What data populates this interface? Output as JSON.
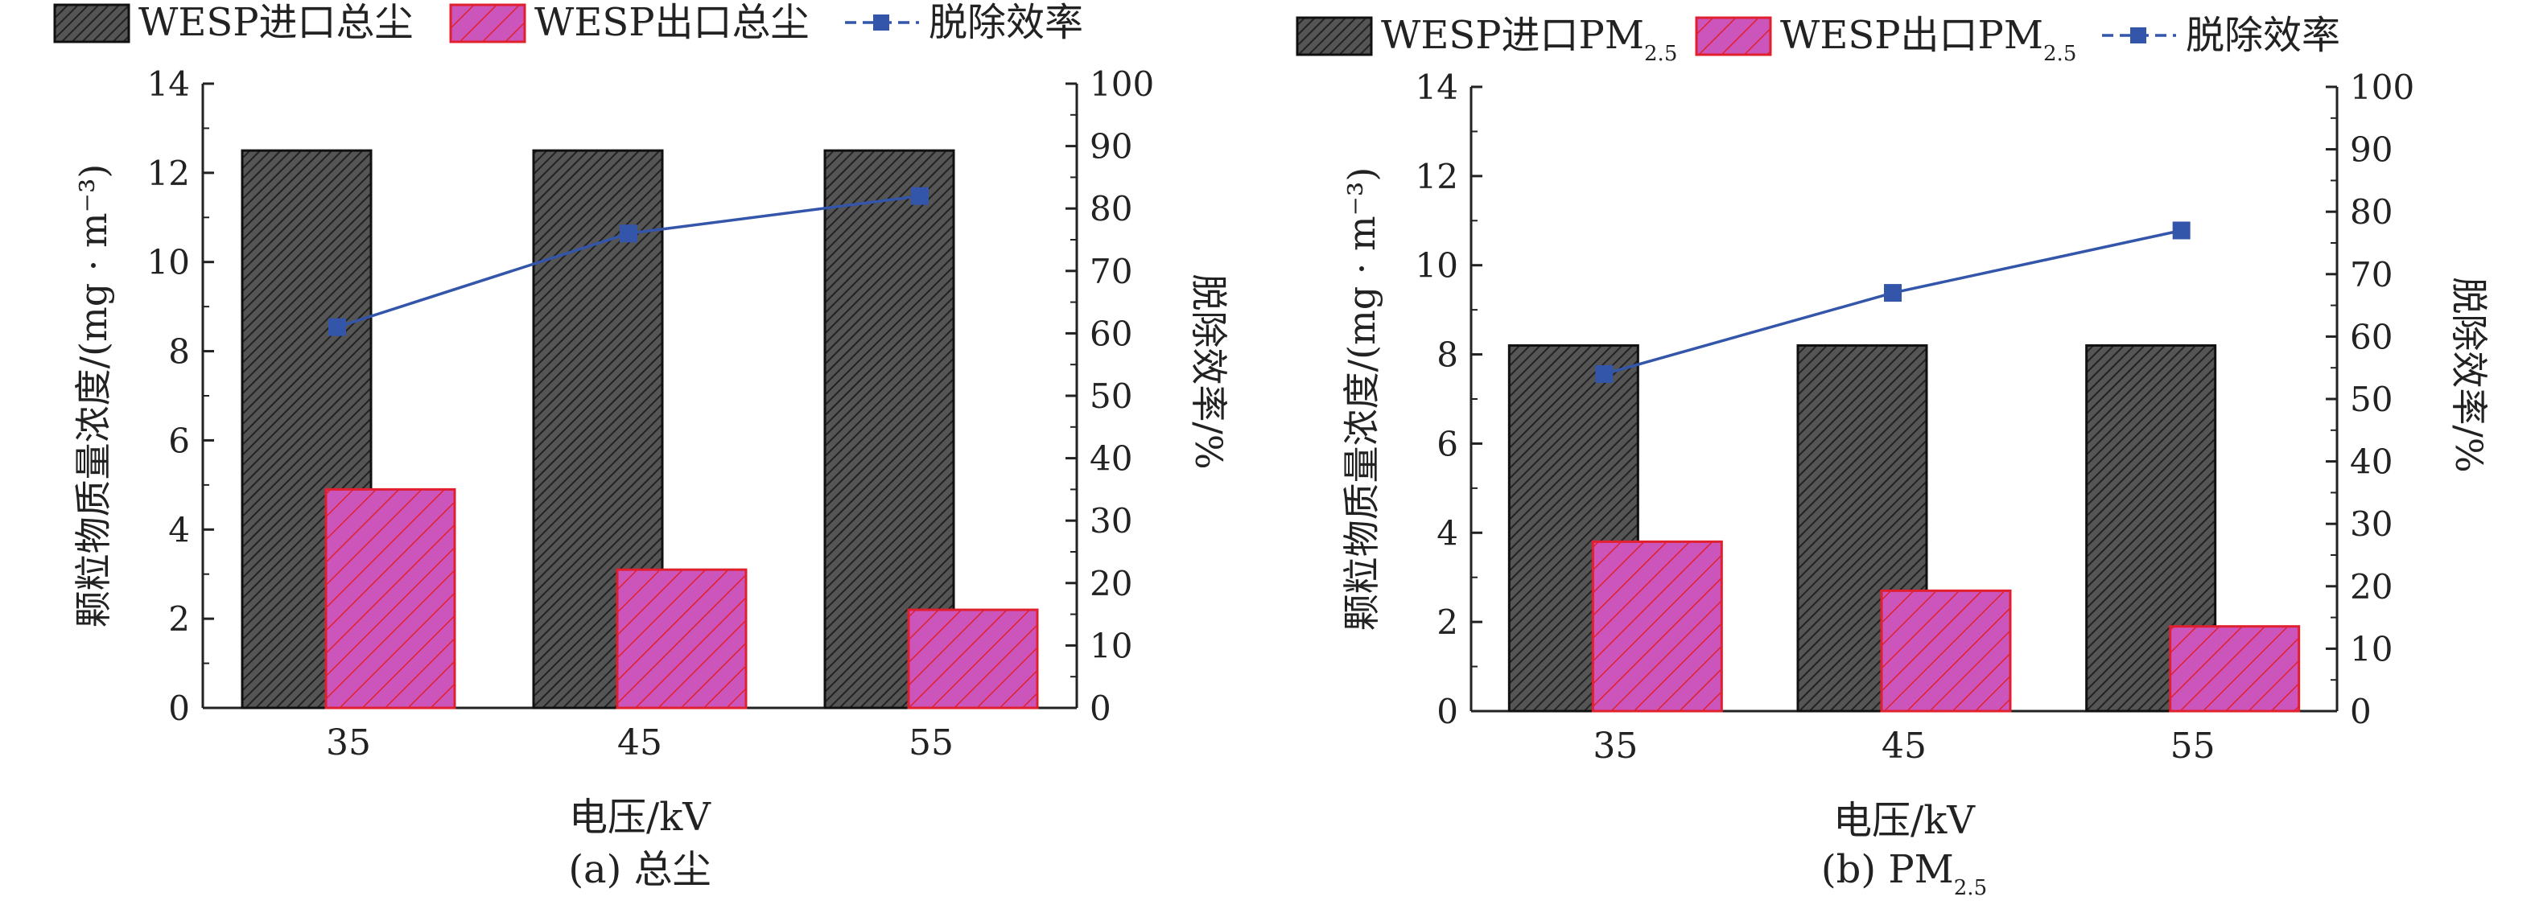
{
  "colors": {
    "inlet_fill": "#555555",
    "inlet_hatch": "#222222",
    "outlet_fill": "#cc55bb",
    "outlet_hatch": "#e0202e",
    "line": "#3355aa",
    "axis": "#222222"
  },
  "chart_data": [
    {
      "type": "bar",
      "caption": "(a) 总尘",
      "categories": [
        "35",
        "45",
        "55"
      ],
      "series": [
        {
          "name": "WESP进口总尘",
          "axis": "left",
          "kind": "bar",
          "values": [
            12.5,
            12.5,
            12.5
          ]
        },
        {
          "name": "WESP出口总尘",
          "axis": "left",
          "kind": "bar",
          "values": [
            4.9,
            3.1,
            2.2
          ]
        },
        {
          "name": "脱除效率",
          "axis": "right",
          "kind": "line",
          "values": [
            61,
            76,
            82
          ]
        }
      ],
      "xlabel": "电压/kV",
      "ylabel": "颗粒物质量浓度/(mg · m⁻³)",
      "y2label": "脱除效率/%",
      "ylim": [
        0,
        14
      ],
      "yticks": [
        "0",
        "2",
        "4",
        "6",
        "8",
        "10",
        "12",
        "14"
      ],
      "y2lim": [
        0,
        100
      ],
      "y2ticks": [
        "0",
        "10",
        "20",
        "30",
        "40",
        "50",
        "60",
        "70",
        "80",
        "90",
        "100"
      ],
      "legend_placement": "top",
      "grid": false
    },
    {
      "type": "bar",
      "caption": "(b) PM2.5",
      "categories": [
        "35",
        "45",
        "55"
      ],
      "series": [
        {
          "name": "WESP进口PM2.5",
          "axis": "left",
          "kind": "bar",
          "values": [
            8.2,
            8.2,
            8.2
          ]
        },
        {
          "name": "WESP出口PM2.5",
          "axis": "left",
          "kind": "bar",
          "values": [
            3.8,
            2.7,
            1.9
          ]
        },
        {
          "name": "脱除效率",
          "axis": "right",
          "kind": "line",
          "values": [
            54,
            67,
            77
          ]
        }
      ],
      "xlabel": "电压/kV",
      "ylabel": "颗粒物质量浓度/(mg · m⁻³)",
      "y2label": "脱除效率/%",
      "ylim": [
        0,
        14
      ],
      "yticks": [
        "0",
        "2",
        "4",
        "6",
        "8",
        "10",
        "12",
        "14"
      ],
      "y2lim": [
        0,
        100
      ],
      "y2ticks": [
        "0",
        "10",
        "20",
        "30",
        "40",
        "50",
        "60",
        "70",
        "80",
        "90",
        "100"
      ],
      "legend_placement": "top",
      "grid": false
    }
  ]
}
